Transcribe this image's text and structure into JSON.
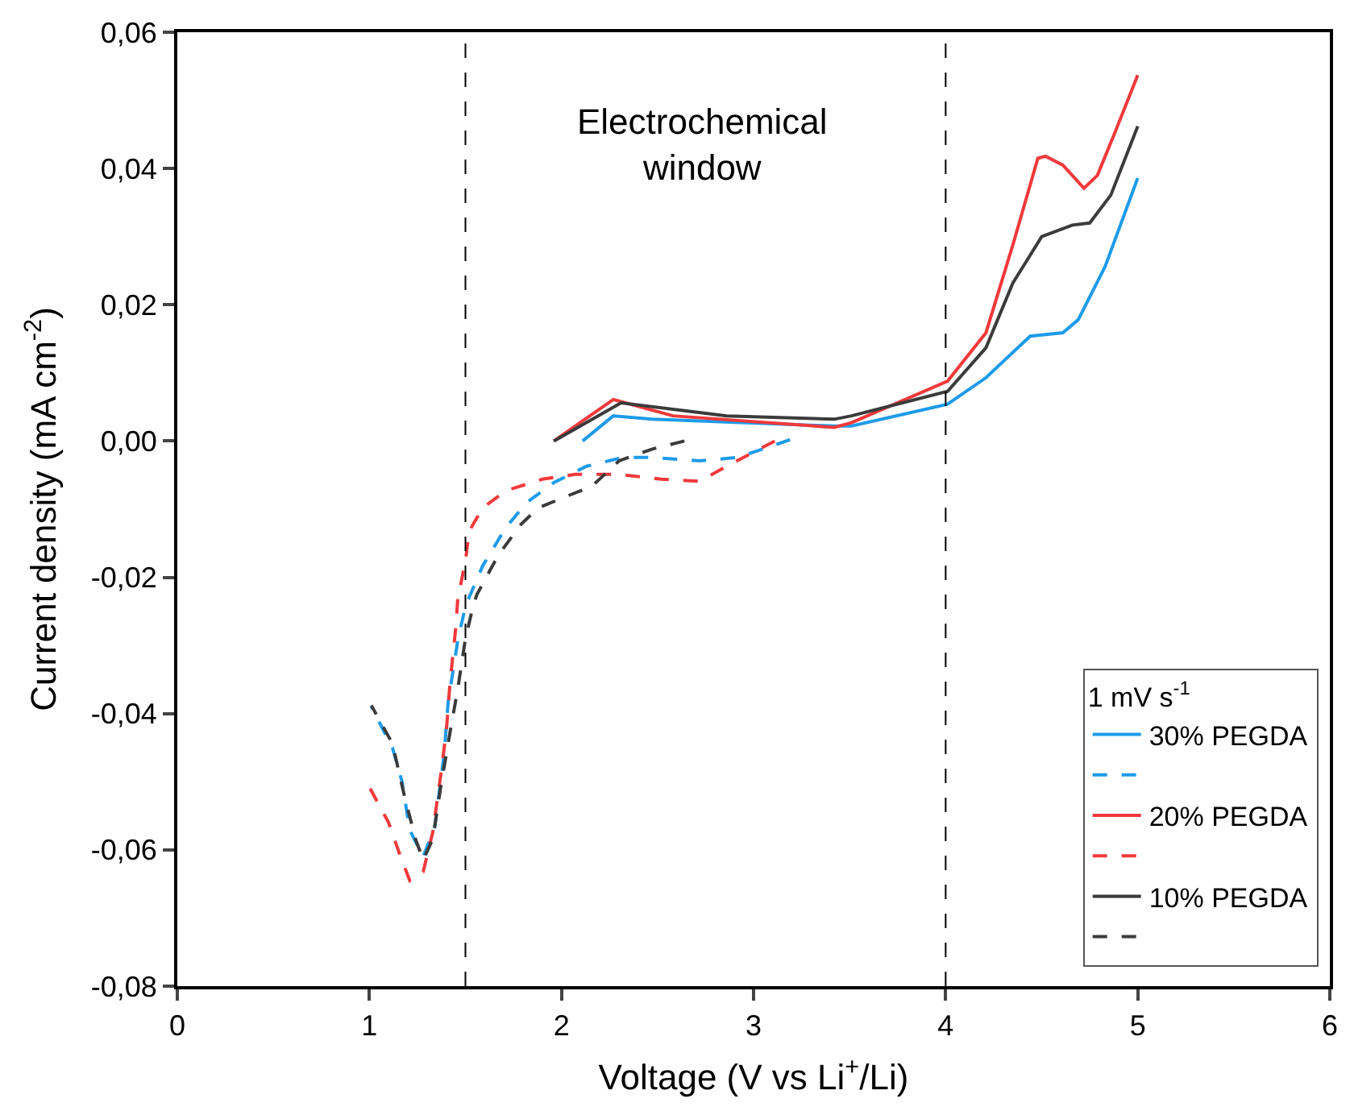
{
  "chart_data": {
    "type": "line",
    "xlabel": "Voltage (V vs Li$^{+}$/Li)",
    "ylabel": "Current density (mA cm$^{-2}$)",
    "legend_title": "1 mV s$^{-1}$",
    "legend": "bottom right",
    "xlim": [
      0,
      6
    ],
    "xticks": [
      0,
      1,
      2,
      3,
      4,
      5,
      6
    ],
    "ylim": [
      -0.08,
      0.06
    ],
    "yticks": [
      {
        "value": -0.08,
        "label": "-0,08"
      },
      {
        "value": -0.06,
        "label": "-0,06"
      },
      {
        "value": -0.04,
        "label": "-0,04"
      },
      {
        "value": -0.02,
        "label": "-0,02"
      },
      {
        "value": 0,
        "label": "0,00"
      },
      {
        "value": 0.02,
        "label": "0,02"
      },
      {
        "value": 0.04,
        "label": "0,04"
      },
      {
        "value": 0.06,
        "label": "0,06"
      }
    ],
    "ref_lines": [
      {
        "axis": "x",
        "value": 1.5,
        "color": "#000000",
        "line_style": "dashed"
      },
      {
        "axis": "x",
        "value": 4,
        "color": "#000000",
        "line_style": "dashed"
      }
    ],
    "annotations": [
      "Electrochemical\nwindow"
    ],
    "series": [
      {
        "name": "30% PEGDA",
        "color": "#1e9be9",
        "line_style": "solid",
        "x": [
          2.11,
          2.27,
          2.47,
          3.42,
          3.51,
          4.01,
          4.21,
          4.44,
          4.61,
          4.69,
          4.83,
          5.0
        ],
        "values": [
          0.0,
          0.0037,
          0.0032,
          0.0022,
          0.0022,
          0.0054,
          0.0093,
          0.0154,
          0.0159,
          0.0178,
          0.0256,
          0.0386
        ]
      },
      {
        "color": "#1e9be9",
        "line_style": "dashed",
        "x": [
          3.19,
          2.92,
          2.72,
          2.47,
          2.32,
          2.13,
          1.96,
          1.82,
          1.71,
          1.59,
          1.5,
          1.46,
          1.41,
          1.39,
          1.34,
          1.28,
          1.21,
          1.17,
          1.12,
          1.01
        ],
        "values": [
          0.0002,
          -0.0024,
          -0.0029,
          -0.0024,
          -0.0024,
          -0.0037,
          -0.0061,
          -0.009,
          -0.0127,
          -0.0183,
          -0.0242,
          -0.0293,
          -0.0383,
          -0.0457,
          -0.0567,
          -0.061,
          -0.0571,
          -0.05,
          -0.045,
          -0.039
        ]
      },
      {
        "name": "20% PEGDA",
        "color": "#f0393b",
        "line_style": "solid",
        "x": [
          1.96,
          2.27,
          2.58,
          3.42,
          3.51,
          4.01,
          4.21,
          4.35,
          4.48,
          4.52,
          4.61,
          4.72,
          4.79,
          4.88,
          5.0
        ],
        "values": [
          0.0,
          0.0061,
          0.0037,
          0.002,
          0.0027,
          0.0088,
          0.0159,
          0.0288,
          0.0415,
          0.0418,
          0.0405,
          0.0371,
          0.039,
          0.0452,
          0.0537
        ]
      },
      {
        "color": "#f0393b",
        "line_style": "dashed",
        "x": [
          3.11,
          2.86,
          2.72,
          2.52,
          2.3,
          2.07,
          1.9,
          1.71,
          1.59,
          1.52,
          1.5,
          1.46,
          1.45,
          1.42,
          1.4,
          1.37,
          1.33,
          1.28,
          1.21,
          1.16,
          1.1,
          1.0
        ],
        "values": [
          0.0,
          -0.0037,
          -0.0059,
          -0.0056,
          -0.0049,
          -0.0049,
          -0.0056,
          -0.0073,
          -0.0098,
          -0.0132,
          -0.0176,
          -0.0232,
          -0.0273,
          -0.0354,
          -0.0427,
          -0.0493,
          -0.0574,
          -0.0632,
          -0.0645,
          -0.0608,
          -0.056,
          -0.0508
        ]
      },
      {
        "name": "10% PEGDA",
        "color": "#3b3b3b",
        "line_style": "solid",
        "x": [
          1.96,
          2.31,
          2.86,
          3.42,
          3.51,
          4.01,
          4.21,
          4.35,
          4.5,
          4.66,
          4.75,
          4.86,
          5.0
        ],
        "values": [
          0.0,
          0.0056,
          0.0037,
          0.0032,
          0.0037,
          0.0073,
          0.0137,
          0.0232,
          0.03,
          0.0317,
          0.032,
          0.0361,
          0.0462
        ]
      },
      {
        "color": "#3b3b3b",
        "line_style": "dashed",
        "x": [
          2.64,
          2.47,
          2.3,
          2.16,
          2.01,
          1.88,
          1.79,
          1.67,
          1.56,
          1.54,
          1.5,
          1.46,
          1.42,
          1.37,
          1.33,
          1.28,
          1.24,
          1.18,
          1.12,
          1.01
        ],
        "values": [
          0.0,
          -0.0012,
          -0.0029,
          -0.0066,
          -0.0083,
          -0.0098,
          -0.0122,
          -0.0168,
          -0.0225,
          -0.0242,
          -0.029,
          -0.0364,
          -0.0427,
          -0.051,
          -0.0584,
          -0.0615,
          -0.0584,
          -0.0518,
          -0.0444,
          -0.0388
        ]
      }
    ]
  }
}
